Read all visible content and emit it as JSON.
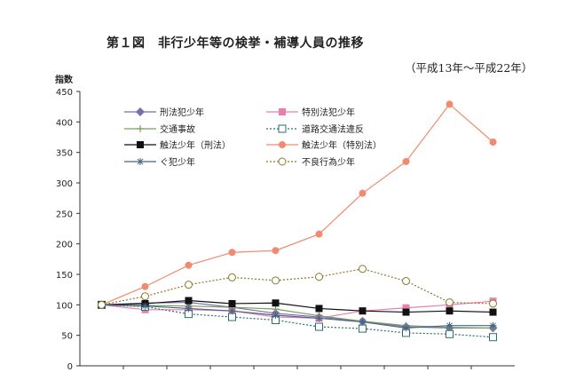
{
  "chart_data": {
    "type": "line",
    "title": "第１図　非行少年等の検挙・補導人員の推移",
    "subtitle": "（平成13年〜平成22年）",
    "ylabel": "指数",
    "xlabel": "",
    "ylim": [
      0,
      450
    ],
    "yticks": [
      "0",
      "50",
      "100",
      "150",
      "200",
      "250",
      "300",
      "350",
      "400",
      "450"
    ],
    "x": [
      1,
      2,
      3,
      4,
      5,
      6,
      7,
      8,
      9,
      10
    ],
    "grid": false,
    "legend_position": "top-left",
    "series": [
      {
        "name": "刑法犯少年",
        "color": "#7b6bb0",
        "marker": "diamond",
        "dash": "solid",
        "values": [
          100,
          103,
          104,
          96,
          86,
          80,
          73,
          64,
          62,
          62
        ]
      },
      {
        "name": "特別法犯少年",
        "color": "#e87fb0",
        "marker": "square",
        "dash": "solid",
        "values": [
          100,
          92,
          92,
          90,
          80,
          78,
          90,
          95,
          100,
          106
        ]
      },
      {
        "name": "交通事故",
        "color": "#7aa060",
        "marker": "plus",
        "dash": "solid",
        "values": [
          100,
          99,
          98,
          96,
          93,
          82,
          73,
          66,
          63,
          62
        ]
      },
      {
        "name": "道路交通法違反",
        "color": "#2c6e6e",
        "marker": "opensquare",
        "dash": "dot",
        "values": [
          100,
          97,
          85,
          80,
          75,
          64,
          61,
          54,
          52,
          47
        ]
      },
      {
        "name": "触法少年（刑法）",
        "color": "#111111",
        "marker": "filledsquare",
        "dash": "solid",
        "values": [
          100,
          102,
          107,
          102,
          103,
          94,
          90,
          88,
          90,
          88
        ]
      },
      {
        "name": "触法少年（特別法）",
        "color": "#f08a70",
        "marker": "circle",
        "dash": "solid",
        "values": [
          100,
          130,
          165,
          186,
          189,
          216,
          283,
          335,
          429,
          367
        ]
      },
      {
        "name": "ぐ犯少年",
        "color": "#446688",
        "marker": "asterisk",
        "dash": "solid",
        "values": [
          100,
          98,
          94,
          90,
          83,
          78,
          72,
          62,
          66,
          66
        ]
      },
      {
        "name": "不良行為少年",
        "color": "#8a7a2a",
        "marker": "opencircle",
        "dash": "dot",
        "values": [
          100,
          114,
          133,
          145,
          140,
          146,
          159,
          139,
          104,
          102
        ]
      }
    ]
  }
}
